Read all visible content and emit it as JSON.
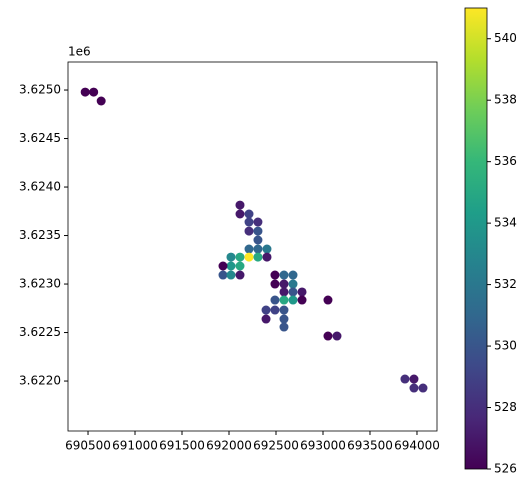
{
  "chart_data": {
    "type": "scatter",
    "x": [
      690470,
      690560,
      690640,
      692117,
      692117,
      692213,
      692213,
      692308,
      692213,
      692308,
      692308,
      692308,
      692213,
      692404,
      692404,
      692021,
      692117,
      692213,
      692308,
      692021,
      692117,
      691936,
      691936,
      692021,
      692117,
      692489,
      692585,
      692681,
      692489,
      692585,
      692681,
      692585,
      692681,
      692777,
      692489,
      692585,
      692681,
      692777,
      692394,
      692489,
      692585,
      692394,
      692585,
      692585,
      693053,
      693053,
      693149,
      693872,
      693968,
      693968,
      694064
    ],
    "y": [
      3624979,
      3624979,
      3624887,
      3623814,
      3623722,
      3623722,
      3623639,
      3623639,
      3623546,
      3623546,
      3623454,
      3623361,
      3623361,
      3623361,
      3623278,
      3623278,
      3623278,
      3623278,
      3623278,
      3623186,
      3623186,
      3623186,
      3623093,
      3623093,
      3623093,
      3623093,
      3623093,
      3623093,
      3623000,
      3623000,
      3623000,
      3622918,
      3622918,
      3622918,
      3622835,
      3622835,
      3622835,
      3622835,
      3622732,
      3622732,
      3622732,
      3622639,
      3622639,
      3622557,
      3622835,
      3622464,
      3622464,
      3622021,
      3622021,
      3621928,
      3621928
    ],
    "c": [
      526,
      526,
      526,
      527,
      527,
      529,
      529,
      528,
      528,
      530,
      530,
      531,
      531,
      532,
      527,
      533,
      535,
      541,
      535,
      534,
      535,
      526,
      530,
      533,
      527,
      526,
      531,
      531,
      526,
      527,
      532,
      527,
      530,
      527,
      530,
      535,
      534,
      526,
      529,
      529,
      530,
      527,
      530,
      530,
      526,
      526,
      527,
      528,
      527,
      528,
      528
    ],
    "cmap": "viridis",
    "xlim": [
      690287,
      694213
    ],
    "ylim": [
      3621485,
      3625289
    ],
    "xticks": [
      690500,
      691000,
      691500,
      692000,
      692500,
      693000,
      693500,
      694000
    ],
    "yticks": [
      {
        "value": 3622000,
        "label": "3.6220"
      },
      {
        "value": 3622500,
        "label": "3.6225"
      },
      {
        "value": 3623000,
        "label": "3.6230"
      },
      {
        "value": 3623500,
        "label": "3.6235"
      },
      {
        "value": 3624000,
        "label": "3.6240"
      },
      {
        "value": 3624500,
        "label": "3.6245"
      },
      {
        "value": 3625000,
        "label": "3.6250"
      }
    ],
    "y_offset_label": "1e6",
    "clim": [
      526,
      541
    ],
    "cticks": [
      526,
      528,
      530,
      532,
      534,
      536,
      538,
      540
    ]
  }
}
